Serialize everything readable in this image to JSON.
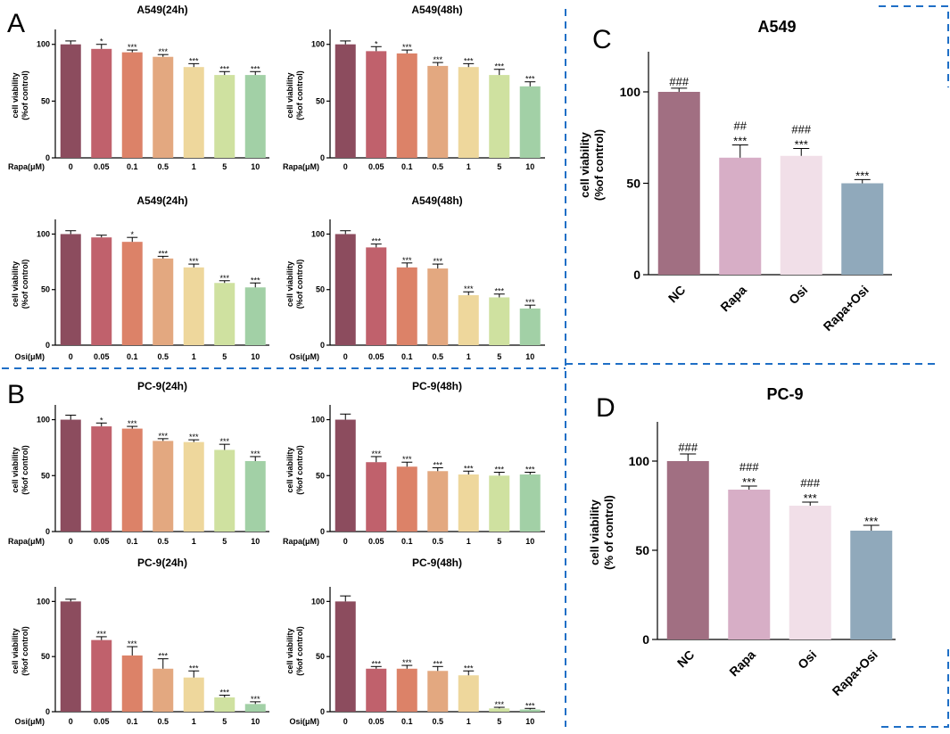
{
  "panels": {
    "a": "A",
    "b": "B",
    "c": "C",
    "d": "D"
  },
  "colors": {
    "dose": [
      "#8c4c5e",
      "#c0616c",
      "#dc8268",
      "#e3a880",
      "#eed79c",
      "#cfe1a0",
      "#a2d0a6"
    ],
    "combo": [
      "#a16f82",
      "#d7aec6",
      "#f1dfe8",
      "#90a9bb"
    ],
    "divider": "#1f6fc6"
  },
  "chart_data": [
    {
      "id": "a1",
      "type": "bar",
      "title": "A549(24h)",
      "xlabel": "Rapa(μM)",
      "ylabel": [
        "cell viability",
        "(%of control)"
      ],
      "categories": [
        "0",
        "0.05",
        "0.1",
        "0.5",
        "1",
        "5",
        "10"
      ],
      "values": [
        100,
        96,
        93,
        89,
        80,
        73,
        73
      ],
      "errors": [
        3,
        4,
        2,
        2,
        3,
        3,
        3
      ],
      "annotations": [
        "",
        "*",
        "***",
        "***",
        "***",
        "***",
        "***"
      ],
      "yticks": [
        "0",
        "50",
        "100"
      ],
      "ylim": [
        0,
        110
      ]
    },
    {
      "id": "a2",
      "type": "bar",
      "title": "A549(48h)",
      "xlabel": "Rapa(μM)",
      "ylabel": [
        "cell viability",
        "(%of control)"
      ],
      "categories": [
        "0",
        "0.05",
        "0.1",
        "0.5",
        "1",
        "5",
        "10"
      ],
      "values": [
        100,
        94,
        92,
        81,
        80,
        73,
        63
      ],
      "errors": [
        3,
        4,
        3,
        3,
        3,
        5,
        4
      ],
      "annotations": [
        "",
        "*",
        "***",
        "***",
        "***",
        "***",
        "***"
      ],
      "yticks": [
        "0",
        "50",
        "100"
      ],
      "ylim": [
        0,
        110
      ]
    },
    {
      "id": "a3",
      "type": "bar",
      "title": "A549(24h)",
      "xlabel": "Osi(μM)",
      "ylabel": [
        "cell viability",
        "(%of control)"
      ],
      "categories": [
        "0",
        "0.05",
        "0.1",
        "0.5",
        "1",
        "5",
        "10"
      ],
      "values": [
        100,
        97,
        93,
        78,
        70,
        56,
        52
      ],
      "errors": [
        3,
        2,
        4,
        2,
        3,
        2,
        4
      ],
      "annotations": [
        "",
        "",
        "*",
        "***",
        "***",
        "***",
        "***"
      ],
      "yticks": [
        "0",
        "50",
        "100"
      ],
      "ylim": [
        0,
        110
      ]
    },
    {
      "id": "a4",
      "type": "bar",
      "title": "A549(48h)",
      "xlabel": "Osi(μM)",
      "ylabel": [
        "cell viability",
        "(%of control)"
      ],
      "categories": [
        "0",
        "0.05",
        "0.1",
        "0.5",
        "1",
        "5",
        "10"
      ],
      "values": [
        100,
        88,
        70,
        69,
        45,
        43,
        33
      ],
      "errors": [
        3,
        3,
        4,
        4,
        3,
        3,
        3
      ],
      "annotations": [
        "",
        "***",
        "***",
        "***",
        "***",
        "***",
        "***"
      ],
      "yticks": [
        "0",
        "50",
        "100"
      ],
      "ylim": [
        0,
        110
      ]
    },
    {
      "id": "b1",
      "type": "bar",
      "title": "PC-9(24h)",
      "xlabel": "Rapa(μM)",
      "ylabel": [
        "cell viability",
        "(%of control)"
      ],
      "categories": [
        "0",
        "0.05",
        "0.1",
        "0.5",
        "1",
        "5",
        "10"
      ],
      "values": [
        100,
        94,
        92,
        81,
        80,
        73,
        63
      ],
      "errors": [
        4,
        3,
        2,
        2,
        2,
        5,
        4
      ],
      "annotations": [
        "",
        "*",
        "***",
        "***",
        "***",
        "***",
        "***"
      ],
      "yticks": [
        "0",
        "50",
        "100"
      ],
      "ylim": [
        0,
        110
      ]
    },
    {
      "id": "b2",
      "type": "bar",
      "title": "PC-9(48h)",
      "xlabel": "Rapa(μM)",
      "ylabel": [
        "cell viability",
        "(%of control)"
      ],
      "categories": [
        "0",
        "0.05",
        "0.1",
        "0.5",
        "1",
        "5",
        "10"
      ],
      "values": [
        100,
        62,
        58,
        54,
        51,
        50,
        51
      ],
      "errors": [
        5,
        5,
        4,
        3,
        3,
        3,
        2
      ],
      "annotations": [
        "",
        "***",
        "***",
        "***",
        "***",
        "***",
        "***"
      ],
      "yticks": [
        "0",
        "50",
        "100"
      ],
      "ylim": [
        0,
        110
      ]
    },
    {
      "id": "b3",
      "type": "bar",
      "title": "PC-9(24h)",
      "xlabel": "Osi(μM)",
      "ylabel": [
        "cell viability",
        "(%of control)"
      ],
      "categories": [
        "0",
        "0.05",
        "0.1",
        "0.5",
        "1",
        "5",
        "10"
      ],
      "values": [
        100,
        65,
        51,
        39,
        31,
        13,
        7
      ],
      "errors": [
        2,
        3,
        8,
        9,
        6,
        2,
        2
      ],
      "annotations": [
        "",
        "***",
        "***",
        "***",
        "***",
        "***",
        "***"
      ],
      "yticks": [
        "0",
        "50",
        "100"
      ],
      "ylim": [
        0,
        110
      ]
    },
    {
      "id": "b4",
      "type": "bar",
      "title": "PC-9(48h)",
      "xlabel": "Osi(μM)",
      "ylabel": [
        "cell viability",
        "(%of control)"
      ],
      "categories": [
        "0",
        "0.05",
        "0.1",
        "0.5",
        "1",
        "5",
        "10"
      ],
      "values": [
        100,
        39,
        39,
        37,
        33,
        3,
        2
      ],
      "errors": [
        5,
        2,
        3,
        4,
        4,
        1,
        1
      ],
      "annotations": [
        "",
        "***",
        "***",
        "***",
        "***",
        "***",
        "***"
      ],
      "yticks": [
        "0",
        "50",
        "100"
      ],
      "ylim": [
        0,
        110
      ]
    },
    {
      "id": "c",
      "type": "bar",
      "title": "A549",
      "xlabel": "",
      "ylabel": [
        "cell viability",
        "(%of control)"
      ],
      "categories": [
        "NC",
        "Rapa",
        "Osi",
        "Rapa+Osi"
      ],
      "values": [
        100,
        64,
        65,
        50
      ],
      "errors": [
        2,
        7,
        4,
        2
      ],
      "annotations": [
        [
          "###"
        ],
        [
          "##",
          "***"
        ],
        [
          "###",
          "***"
        ],
        [
          "***"
        ]
      ],
      "yticks": [
        "0",
        "50",
        "100"
      ],
      "ylim": [
        0,
        120
      ]
    },
    {
      "id": "d",
      "type": "bar",
      "title": "PC-9",
      "xlabel": "",
      "ylabel": [
        "cell viability",
        "(% of control)"
      ],
      "categories": [
        "NC",
        "Rapa",
        "Osi",
        "Rapa+Osi"
      ],
      "values": [
        100,
        84,
        75,
        61
      ],
      "errors": [
        4,
        2,
        2,
        3
      ],
      "annotations": [
        [
          "###"
        ],
        [
          "###",
          "***"
        ],
        [
          "###",
          "***"
        ],
        [
          "***"
        ]
      ],
      "yticks": [
        "0",
        "50",
        "100"
      ],
      "ylim": [
        0,
        120
      ]
    }
  ]
}
